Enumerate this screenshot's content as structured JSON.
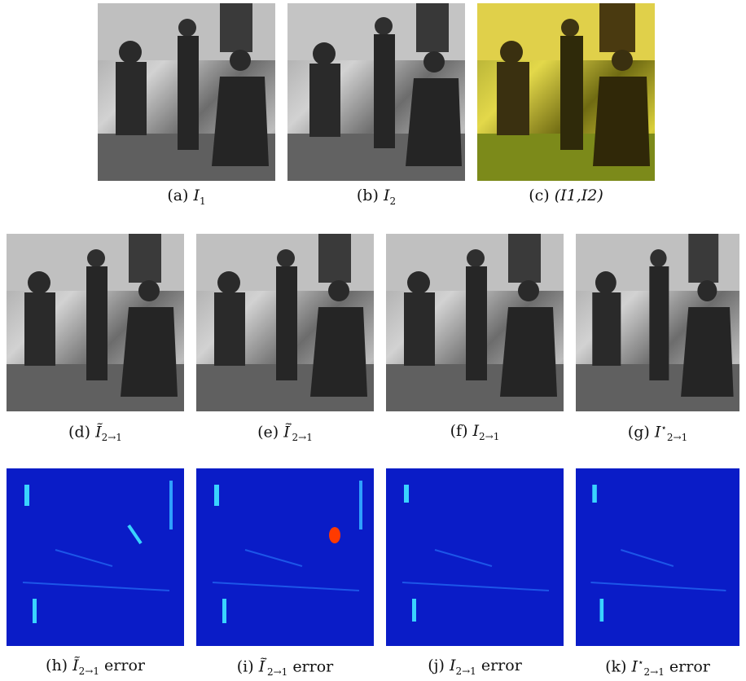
{
  "panels": {
    "a": {
      "tag": "(a)",
      "math": "I",
      "sub": "1",
      "sup": "",
      "suffix": ""
    },
    "b": {
      "tag": "(b)",
      "math": "I",
      "sub": "2",
      "sup": "",
      "suffix": ""
    },
    "c": {
      "tag": "(c)",
      "text": "(I1,I2)"
    },
    "d": {
      "tag": "(d)",
      "math": "Ĩ",
      "sub": "2→1",
      "sup": "",
      "suffix": ""
    },
    "e": {
      "tag": "(e)",
      "math": "Ĩ",
      "sub": "2→1",
      "sup": "′",
      "suffix": ""
    },
    "f": {
      "tag": "(f)",
      "math": "I",
      "sub": "2→1",
      "sup": "",
      "suffix": ""
    },
    "g": {
      "tag": "(g)",
      "math": "I",
      "sub": "2→1",
      "sup": "⋆",
      "suffix": ""
    },
    "h": {
      "tag": "(h)",
      "math": "Ĩ",
      "sub": "2→1",
      "sup": "",
      "suffix": "error"
    },
    "i": {
      "tag": "(i)",
      "math": "Ĩ",
      "sub": "2→1",
      "sup": "′",
      "suffix": "error"
    },
    "j": {
      "tag": "(j)",
      "math": "I",
      "sub": "2→1",
      "sup": "",
      "suffix": "error"
    },
    "k": {
      "tag": "(k)",
      "math": "I",
      "sub": "2→1",
      "sup": "⋆",
      "suffix": "error"
    }
  },
  "colors": {
    "heatmap_base": "#0a1cc7",
    "heatmap_high": "#39d3ff",
    "heatmap_peak": "#ff3a00",
    "overlay": "#d9cf3a"
  }
}
